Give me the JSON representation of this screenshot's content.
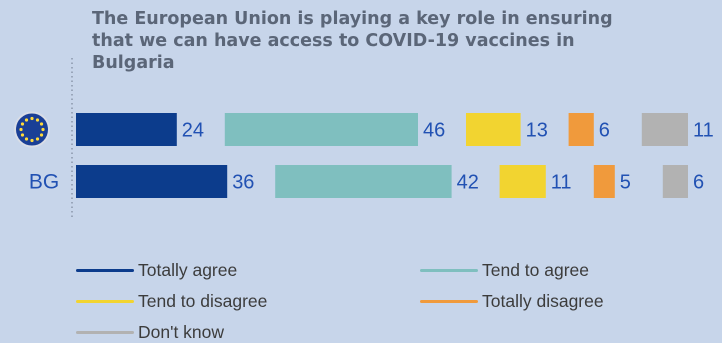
{
  "chart_data": {
    "type": "bar",
    "stacked": true,
    "orientation": "horizontal",
    "title": "The European Union is playing a key role in ensuring that we can have access to COVID-19 vaccines in Bulgaria",
    "categories": [
      "EU",
      "BG"
    ],
    "category_icons": [
      "eu-flag-icon",
      null
    ],
    "series": [
      {
        "name": "Totally agree",
        "values": [
          24,
          36
        ],
        "color": "#0c3c8c"
      },
      {
        "name": "Tend to agree",
        "values": [
          46,
          42
        ],
        "color": "#7fbfbf"
      },
      {
        "name": "Tend to disagree",
        "values": [
          13,
          11
        ],
        "color": "#f2d430"
      },
      {
        "name": "Totally disagree",
        "values": [
          6,
          5
        ],
        "color": "#f09a3c"
      },
      {
        "name": "Don't know",
        "values": [
          11,
          6
        ],
        "color": "#b2b2b2"
      }
    ],
    "label_color": "#2151b3",
    "legend_placement": "bottom",
    "grid": false
  }
}
